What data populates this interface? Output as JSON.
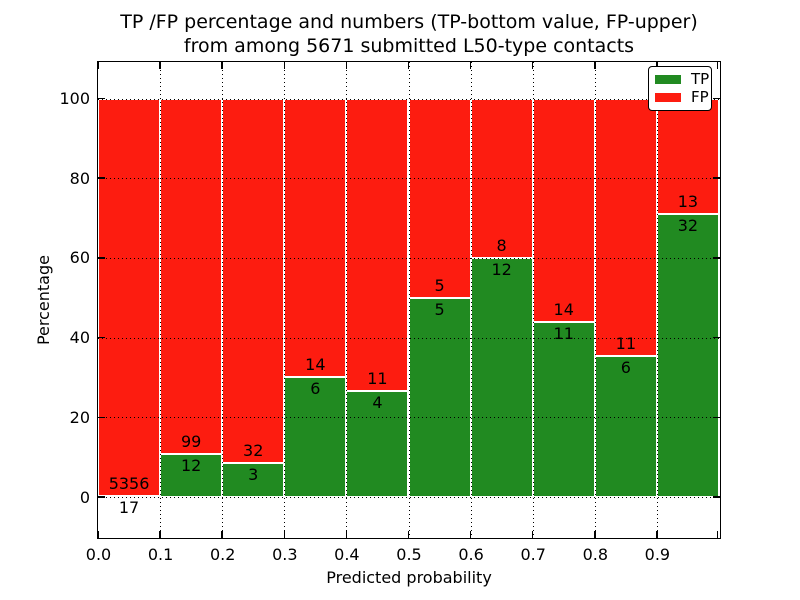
{
  "title": {
    "line1": "TP /FP percentage and numbers (TP-bottom value, FP-upper)",
    "line2": "from among 5671 submitted L50-type contacts"
  },
  "chart_data": {
    "type": "bar",
    "stacked": true,
    "normalized_to_percent": true,
    "title": "TP /FP percentage and numbers (TP-bottom value, FP-upper) from among 5671 submitted L50-type contacts",
    "total_submitted": 5671,
    "bin_edges": [
      0.0,
      0.1,
      0.2,
      0.3,
      0.4,
      0.5,
      0.6,
      0.7,
      0.8,
      0.9,
      1.0
    ],
    "categories": [
      "0.0-0.1",
      "0.1-0.2",
      "0.2-0.3",
      "0.3-0.4",
      "0.4-0.5",
      "0.5-0.6",
      "0.6-0.7",
      "0.7-0.8",
      "0.8-0.9",
      "0.9-1.0"
    ],
    "series": [
      {
        "name": "TP",
        "color": "#218a21",
        "values": [
          17,
          12,
          3,
          6,
          4,
          5,
          12,
          11,
          6,
          32
        ]
      },
      {
        "name": "FP",
        "color": "#fd1c10",
        "values": [
          5356,
          99,
          32,
          14,
          11,
          5,
          8,
          14,
          11,
          13
        ]
      }
    ],
    "tp_percent": [
      0.32,
      10.81,
      8.57,
      30.0,
      26.67,
      50.0,
      60.0,
      44.0,
      35.29,
      71.11
    ],
    "xlabel": "Predicted probability",
    "ylabel": "Percentage",
    "xtick_labels": [
      "0.0",
      "0.1",
      "0.2",
      "0.3",
      "0.4",
      "0.5",
      "0.6",
      "0.7",
      "0.8",
      "0.9"
    ],
    "yticks": [
      0,
      20,
      40,
      60,
      80,
      100
    ],
    "ytick_labels": [
      "0",
      "20",
      "40",
      "60",
      "80",
      "100"
    ],
    "xlim": [
      0.0,
      1.0
    ],
    "ylim": [
      -10,
      110
    ],
    "grid": {
      "style": "dotted",
      "color": "#000000",
      "on": true
    },
    "bar_edge_color": "#ffffff",
    "legend": {
      "position": "upper-right",
      "entries": [
        {
          "label": "TP",
          "color": "#218a21"
        },
        {
          "label": "FP",
          "color": "#fd1c10"
        }
      ]
    }
  },
  "colors": {
    "background": "#ffffff",
    "frame": "#000000",
    "text": "#000000"
  }
}
